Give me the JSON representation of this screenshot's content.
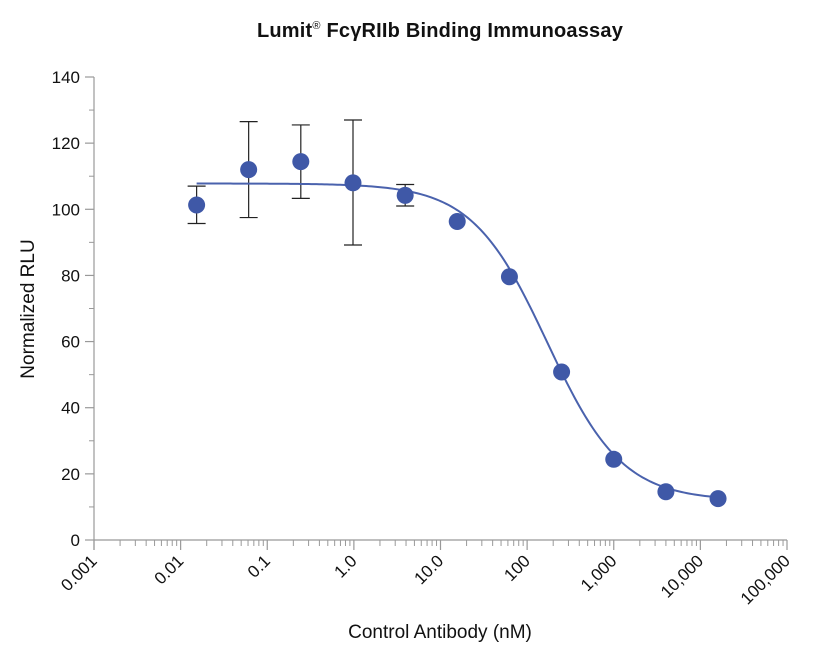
{
  "chart_data": {
    "type": "scatter",
    "title_parts": {
      "prefix": "Lumit",
      "sup": "®",
      "suffix": " FcγRIIb Binding Immunoassay"
    },
    "xlabel": "Control Antibody (nM)",
    "ylabel": "Normalized RLU",
    "x_scale": "log",
    "xlim": [
      0.001,
      100000
    ],
    "ylim": [
      0,
      140
    ],
    "x_ticks": [
      0.001,
      0.01,
      0.1,
      1,
      10,
      100,
      1000,
      10000,
      100000
    ],
    "x_tick_labels": [
      "0.001",
      "0.01",
      "0.1",
      "1.0",
      "10.0",
      "100",
      "1,000",
      "10,000",
      "100,000"
    ],
    "y_ticks": [
      0,
      20,
      40,
      60,
      80,
      100,
      120,
      140
    ],
    "y_tick_labels": [
      "0",
      "20",
      "40",
      "60",
      "80",
      "100",
      "120",
      "140"
    ],
    "grid": false,
    "legend": "none",
    "points": [
      {
        "x": 0.0153,
        "y": 101.3,
        "err_low": 95.7,
        "err_high": 107.0
      },
      {
        "x": 0.061,
        "y": 112.0,
        "err_low": 97.5,
        "err_high": 126.5
      },
      {
        "x": 0.244,
        "y": 114.4,
        "err_low": 103.3,
        "err_high": 125.5
      },
      {
        "x": 0.977,
        "y": 108.0,
        "err_low": 89.2,
        "err_high": 127.0
      },
      {
        "x": 3.91,
        "y": 104.2,
        "err_low": 101.0,
        "err_high": 107.5
      },
      {
        "x": 15.6,
        "y": 96.3,
        "err_low": 96.3,
        "err_high": 96.3
      },
      {
        "x": 62.5,
        "y": 79.6,
        "err_low": 79.6,
        "err_high": 79.6
      },
      {
        "x": 250,
        "y": 50.8,
        "err_low": 50.8,
        "err_high": 50.8
      },
      {
        "x": 1000,
        "y": 24.4,
        "err_low": 24.4,
        "err_high": 24.4
      },
      {
        "x": 4000,
        "y": 14.6,
        "err_low": 14.6,
        "err_high": 14.6
      },
      {
        "x": 16000,
        "y": 12.5,
        "err_low": 12.5,
        "err_high": 12.5
      }
    ],
    "fit_curve": {
      "model": "4PL",
      "top": 107.8,
      "bottom": 11.9,
      "ec50": 170,
      "hill": 1.0,
      "x_range": [
        0.0153,
        16000
      ]
    },
    "colors": {
      "marker": "#3f58a7",
      "curve": "#4a62ad",
      "axis": "#999999",
      "errorbar": "#222222"
    }
  }
}
